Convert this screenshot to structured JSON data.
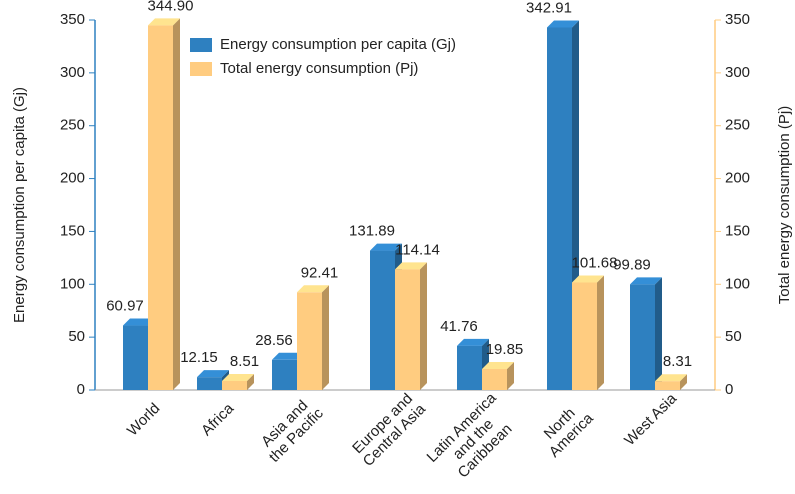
{
  "chart_data": {
    "type": "bar",
    "categories": [
      "World",
      "Africa",
      "Asia and\nthe Pacific",
      "Europe and\nCentral Asia",
      "Latin America\nand the\nCaribbean",
      "North\nAmerica",
      "West Asia"
    ],
    "series": [
      {
        "name": "Energy consumption per capita (Gj)",
        "color": "#2e80c0",
        "values": [
          60.97,
          12.15,
          28.56,
          131.89,
          41.76,
          342.91,
          99.89
        ],
        "value_labels": [
          "60.97",
          "12.15",
          "28.56",
          "131.89",
          "41.76",
          "342.91",
          "99.89"
        ]
      },
      {
        "name": "Total energy consumption (Pj)",
        "color": "#ffcc80",
        "axis": "y2",
        "values": [
          344.9,
          8.51,
          92.41,
          114.14,
          19.85,
          101.68,
          8.31
        ],
        "value_labels": [
          "344.90",
          "8.51",
          "92.41",
          "114.14",
          "19.85",
          "101.68",
          "8.31"
        ]
      }
    ],
    "ylabel": "Energy consumption per capita (Gj)",
    "y2label": "Total energy consumption (Pj)",
    "ylim": [
      0,
      350
    ],
    "yticks": [
      0,
      50,
      100,
      150,
      200,
      250,
      300,
      350
    ],
    "y2lim": [
      0,
      350
    ],
    "y2ticks": [
      0,
      50,
      100,
      150,
      200,
      250,
      300,
      350
    ]
  }
}
